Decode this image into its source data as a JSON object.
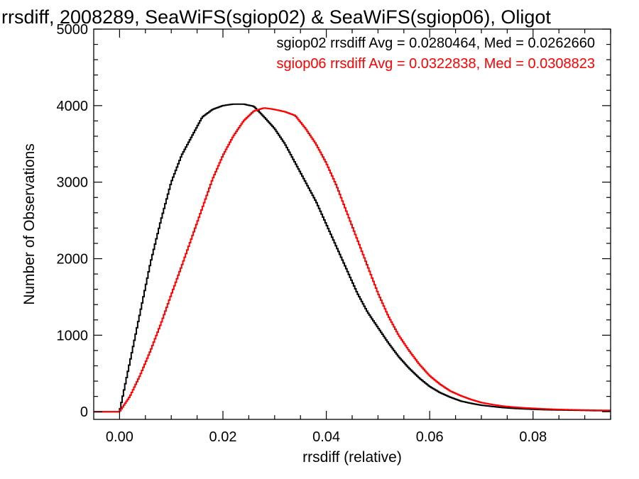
{
  "chart_data": {
    "type": "line",
    "title": "rrsdiff, 2008289, SeaWiFS(sgiop02) & SeaWiFS(sgiop06), Oligot",
    "xlabel": "rrsdiff (relative)",
    "ylabel": "Number of Observations",
    "xlim": [
      -0.005,
      0.095
    ],
    "ylim": [
      -100,
      5000
    ],
    "xticks": [
      0.0,
      0.02,
      0.04,
      0.06,
      0.08
    ],
    "xtick_labels": [
      "0.00",
      "0.02",
      "0.04",
      "0.06",
      "0.08"
    ],
    "yticks": [
      0,
      1000,
      2000,
      3000,
      4000,
      5000
    ],
    "ytick_labels": [
      "0",
      "1000",
      "2000",
      "3000",
      "4000",
      "5000"
    ],
    "grid": false,
    "series": [
      {
        "name": "sgiop02",
        "annotation": "sgiop02 rrsdiff Avg = 0.0280464, Med = 0.0262660",
        "color": "#000000",
        "x": [
          -0.003,
          0.0,
          0.002,
          0.004,
          0.006,
          0.008,
          0.01,
          0.012,
          0.014,
          0.016,
          0.018,
          0.02,
          0.022,
          0.024,
          0.026,
          0.028,
          0.03,
          0.032,
          0.034,
          0.036,
          0.038,
          0.04,
          0.042,
          0.044,
          0.046,
          0.048,
          0.05,
          0.052,
          0.054,
          0.056,
          0.058,
          0.06,
          0.062,
          0.064,
          0.066,
          0.068,
          0.07,
          0.072,
          0.074,
          0.076,
          0.078,
          0.08,
          0.082,
          0.084,
          0.086,
          0.088,
          0.09,
          0.092,
          0.094
        ],
        "y": [
          0,
          0,
          650,
          1300,
          1950,
          2500,
          3000,
          3350,
          3600,
          3850,
          3950,
          4000,
          4020,
          4020,
          3990,
          3850,
          3700,
          3500,
          3250,
          3000,
          2750,
          2450,
          2150,
          1850,
          1550,
          1300,
          1100,
          900,
          720,
          570,
          440,
          330,
          250,
          190,
          140,
          110,
          85,
          70,
          55,
          45,
          38,
          32,
          27,
          24,
          22,
          20,
          18,
          15,
          15
        ]
      },
      {
        "name": "sgiop06",
        "annotation": "sgiop06 rrsdiff Avg = 0.0322838, Med = 0.0308823",
        "color": "#ff0000",
        "x": [
          -0.003,
          0.0,
          0.002,
          0.004,
          0.006,
          0.008,
          0.01,
          0.012,
          0.014,
          0.016,
          0.018,
          0.02,
          0.022,
          0.024,
          0.026,
          0.028,
          0.03,
          0.032,
          0.034,
          0.036,
          0.038,
          0.04,
          0.042,
          0.044,
          0.046,
          0.048,
          0.05,
          0.052,
          0.054,
          0.056,
          0.058,
          0.06,
          0.062,
          0.064,
          0.066,
          0.068,
          0.07,
          0.072,
          0.074,
          0.076,
          0.078,
          0.08,
          0.082,
          0.084,
          0.086,
          0.088,
          0.09,
          0.092,
          0.094
        ],
        "y": [
          0,
          0,
          200,
          480,
          800,
          1150,
          1530,
          1900,
          2280,
          2660,
          3040,
          3350,
          3600,
          3800,
          3930,
          3970,
          3950,
          3920,
          3870,
          3700,
          3500,
          3250,
          2950,
          2600,
          2250,
          1900,
          1550,
          1250,
          1000,
          800,
          620,
          470,
          360,
          270,
          210,
          160,
          120,
          95,
          75,
          62,
          52,
          45,
          38,
          32,
          28,
          25,
          22,
          20,
          18
        ]
      }
    ]
  }
}
